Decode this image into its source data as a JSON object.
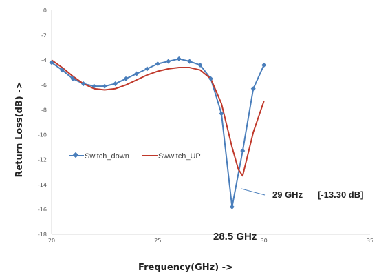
{
  "chart_data": {
    "type": "line",
    "title": "",
    "xlabel": "Frequency(GHz) ->",
    "ylabel": "Return Loss(dB) ->",
    "xlim": [
      20,
      35
    ],
    "ylim": [
      -18,
      0
    ],
    "x_ticks": [
      "20",
      "25",
      "30",
      "35"
    ],
    "y_ticks": [
      "0",
      "-2",
      "-4",
      "-6",
      "-8",
      "-10",
      "-12",
      "-14",
      "-16",
      "-18"
    ],
    "grid": false,
    "legend_position": "center-left",
    "series": [
      {
        "name": "Switch_down",
        "color": "#4a7ebb",
        "marker": "diamond",
        "x": [
          20,
          20.5,
          21,
          21.5,
          22,
          22.5,
          23,
          23.5,
          24,
          24.5,
          25,
          25.5,
          26,
          26.5,
          27,
          27.5,
          28,
          28.5,
          29,
          29.5,
          30
        ],
        "y": [
          -4.2,
          -4.8,
          -5.5,
          -5.9,
          -6.1,
          -6.1,
          -5.9,
          -5.5,
          -5.1,
          -4.7,
          -4.3,
          -4.1,
          -3.9,
          -4.1,
          -4.4,
          -5.5,
          -8.3,
          -15.8,
          -11.3,
          -6.3,
          -4.4
        ]
      },
      {
        "name": "Swwitch_UP",
        "color": "#c0392b",
        "marker": "none",
        "x": [
          20,
          20.5,
          21,
          21.5,
          22,
          22.5,
          23,
          23.5,
          24,
          24.5,
          25,
          25.5,
          26,
          26.5,
          27,
          27.5,
          28,
          28.5,
          28.8,
          29,
          29.5,
          30
        ],
        "y": [
          -4.0,
          -4.6,
          -5.3,
          -5.9,
          -6.3,
          -6.4,
          -6.3,
          -6.0,
          -5.6,
          -5.2,
          -4.9,
          -4.7,
          -4.6,
          -4.6,
          -4.8,
          -5.5,
          -7.5,
          -11.0,
          -12.8,
          -13.3,
          -9.8,
          -7.3
        ]
      }
    ],
    "annotations": [
      {
        "text": "29 GHz",
        "x": 29,
        "y": -13.3
      },
      {
        "text": "[-13.30 dB]"
      },
      {
        "text": "28.5  GHz"
      }
    ]
  }
}
